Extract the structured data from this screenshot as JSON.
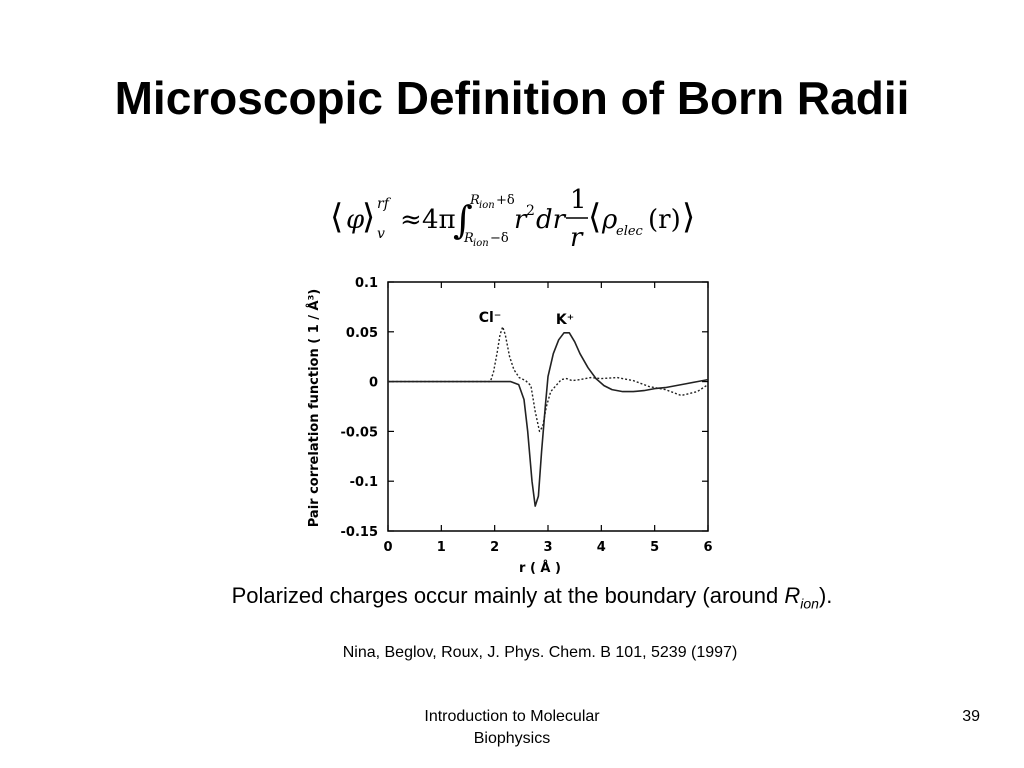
{
  "slide": {
    "title": "Microscopic Definition of Born Radii",
    "equation": {
      "lhs_symbol": "φ",
      "lhs_superscript": "rf",
      "lhs_subscript": "v",
      "approx": "≈",
      "coefficient": "4π",
      "integral": "∫",
      "upper_limit": "R",
      "upper_limit_sub": "ion",
      "upper_limit_tail": "+δ",
      "lower_limit": "R",
      "lower_limit_sub": "ion",
      "lower_limit_tail": "−δ",
      "r": "r",
      "power": "2",
      "dr": "dr",
      "numerator": "1",
      "denominator": "r",
      "rho": "ρ",
      "rho_sub": "elec",
      "argument": "(r)"
    },
    "caption": {
      "text": "Polarized charges occur mainly at the boundary (around ",
      "symbol": "R",
      "symbol_sub": "ion",
      "tail": ")."
    },
    "reference": "Nina, Beglov, Roux, J. Phys. Chem. B 101, 5239 (1997)",
    "footer": {
      "line1": "Introduction to Molecular",
      "line2": "Biophysics"
    },
    "slide_number": "39"
  },
  "chart_data": {
    "type": "line",
    "title": "",
    "xlabel": "r ( Å )",
    "ylabel": "Pair correlation function ( 1 / Å³)",
    "xlim": [
      0,
      6
    ],
    "ylim": [
      -0.15,
      0.1
    ],
    "x_ticks": [
      "0",
      "1",
      "2",
      "3",
      "4",
      "5",
      "6"
    ],
    "y_ticks": [
      "0.1",
      "0.05",
      "0",
      "-0.05",
      "-0.1",
      "-0.15"
    ],
    "y_tick_values": [
      0.1,
      0.05,
      0,
      -0.05,
      -0.1,
      -0.15
    ],
    "grid": false,
    "series": [
      {
        "name": "K⁺",
        "style": "solid",
        "x": [
          0,
          2.3,
          2.45,
          2.55,
          2.62,
          2.7,
          2.76,
          2.82,
          2.88,
          2.95,
          3.0,
          3.1,
          3.2,
          3.3,
          3.4,
          3.5,
          3.6,
          3.75,
          3.9,
          4.05,
          4.2,
          4.4,
          4.6,
          4.8,
          5.0,
          5.2,
          5.4,
          5.6,
          5.8,
          6.0
        ],
        "values": [
          0,
          0,
          -0.003,
          -0.018,
          -0.05,
          -0.1,
          -0.125,
          -0.115,
          -0.07,
          -0.025,
          0.005,
          0.028,
          0.042,
          0.049,
          0.049,
          0.04,
          0.028,
          0.014,
          0.003,
          -0.004,
          -0.008,
          -0.01,
          -0.01,
          -0.009,
          -0.007,
          -0.006,
          -0.004,
          -0.002,
          0.0,
          0.002
        ]
      },
      {
        "name": "Cl⁻",
        "style": "dotted",
        "x": [
          0,
          1.92,
          1.98,
          2.05,
          2.1,
          2.15,
          2.2,
          2.28,
          2.36,
          2.46,
          2.58,
          2.68,
          2.76,
          2.84,
          2.9,
          2.97,
          3.05,
          3.15,
          3.25,
          3.35,
          3.45,
          3.6,
          3.8,
          4.0,
          4.3,
          4.6,
          4.9,
          5.2,
          5.5,
          5.8,
          6.0
        ],
        "values": [
          0,
          0,
          0.01,
          0.03,
          0.047,
          0.055,
          0.047,
          0.025,
          0.012,
          0.004,
          0.001,
          -0.004,
          -0.03,
          -0.05,
          -0.045,
          -0.025,
          -0.01,
          -0.004,
          0.002,
          0.003,
          0.001,
          0.002,
          0.004,
          0.003,
          0.004,
          0.001,
          -0.005,
          -0.008,
          -0.014,
          -0.01,
          -0.003
        ]
      }
    ]
  }
}
